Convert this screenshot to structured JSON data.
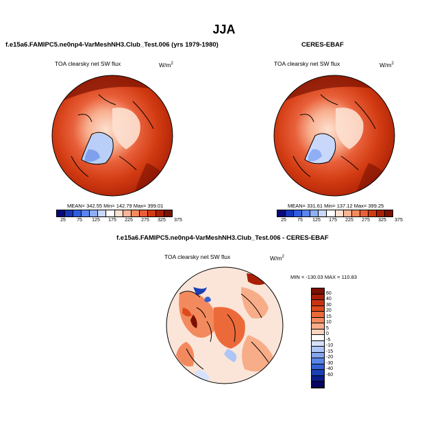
{
  "title": "JJA",
  "panels": [
    {
      "title": "f.e15a6.FAMIPC5.ne0np4-VarMeshNH3.Club_Test.006 (yrs 1979-1980)",
      "subtitle": "TOA clearsky net SW flux",
      "units": "W/m",
      "units_sup": "2",
      "stats": "MEAN= 342.55  Min= 142.79  Max= 399.01"
    },
    {
      "title": "CERES-EBAF",
      "subtitle": "TOA clearsky net SW flux",
      "units": "W/m",
      "units_sup": "2",
      "stats": "MEAN= 331.61  Min= 137.12  Max= 399.25"
    }
  ],
  "diff_panel": {
    "title": "f.e15a6.FAMIPC5.ne0np4-VarMeshNH3.Club_Test.006 - CERES-EBAF",
    "subtitle": "TOA clearsky net SW flux",
    "units": "W/m",
    "units_sup": "2",
    "minmax": "MIN = -130.03  MAX = 110.83"
  },
  "colorbar_top": {
    "colors": [
      "#08087a",
      "#1637b8",
      "#2f5fe0",
      "#5a84ef",
      "#8eaef5",
      "#c9d8fa",
      "#ffffff",
      "#fde0d0",
      "#f9b596",
      "#f48a5c",
      "#e8603a",
      "#d23b12",
      "#a81f05",
      "#7a1102"
    ],
    "ticks": [
      "25",
      "75",
      "125",
      "175",
      "225",
      "275",
      "325",
      "375"
    ]
  },
  "colorbar_diff": {
    "colors": [
      "#7a1102",
      "#a81f05",
      "#c83412",
      "#dd4a1e",
      "#ec6a3a",
      "#f38a5e",
      "#f8ad89",
      "#fcd3bd",
      "#ffffff",
      "#d6e2fb",
      "#aec6f6",
      "#84a6ef",
      "#5a84e6",
      "#3461d4",
      "#1b3fb4",
      "#0b1d8a",
      "#050563"
    ],
    "labels": [
      "60",
      "40",
      "30",
      "20",
      "15",
      "10",
      "5",
      "0",
      "-5",
      "-10",
      "-15",
      "-20",
      "-30",
      "-40",
      "-60"
    ]
  }
}
